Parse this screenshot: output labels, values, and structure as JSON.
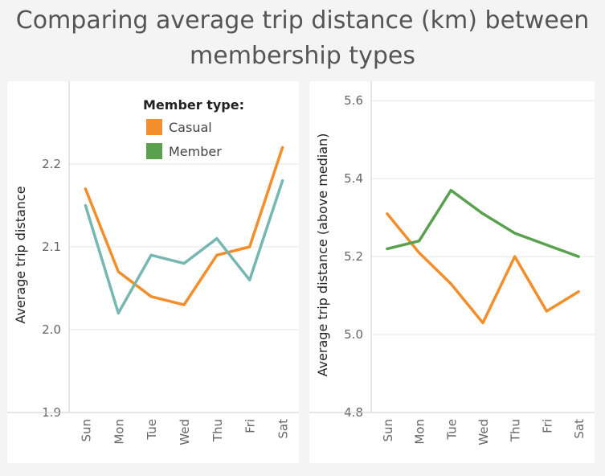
{
  "title": "Comparing average trip distance (km) between membership types",
  "colors": {
    "casual": "#f28e2b",
    "member": "#59a14f",
    "member_left_line": "#76b7b2",
    "grid": "#e6e6e6",
    "axis": "#cccccc"
  },
  "legend": {
    "title": "Member type:",
    "items": [
      {
        "label": "Casual",
        "color": "#f28e2b"
      },
      {
        "label": "Member",
        "color": "#59a14f"
      }
    ]
  },
  "chart_data": [
    {
      "type": "line",
      "categories": [
        "Sun",
        "Mon",
        "Tue",
        "Wed",
        "Thu",
        "Fri",
        "Sat"
      ],
      "ylabel": "Average trip distance",
      "ylim": [
        1.9,
        2.3
      ],
      "yticks": [
        "1.9",
        "2.0",
        "2.1",
        "2.2"
      ],
      "series": [
        {
          "key": "casual",
          "values": [
            2.17,
            2.07,
            2.04,
            2.03,
            2.09,
            2.1,
            2.22
          ]
        },
        {
          "key": "member",
          "values": [
            2.15,
            2.02,
            2.09,
            2.08,
            2.11,
            2.06,
            2.18
          ]
        }
      ]
    },
    {
      "type": "line",
      "categories": [
        "Sun",
        "Mon",
        "Tue",
        "Wed",
        "Thu",
        "Fri",
        "Sat"
      ],
      "ylabel": "Average trip distance (above median)",
      "ylim": [
        4.8,
        5.6
      ],
      "yticks": [
        "4.8",
        "5.0",
        "5.2",
        "5.4",
        "5.6"
      ],
      "series": [
        {
          "key": "casual",
          "values": [
            5.31,
            5.21,
            5.13,
            5.03,
            5.2,
            5.06,
            5.11
          ]
        },
        {
          "key": "member",
          "values": [
            5.22,
            5.24,
            5.37,
            5.31,
            5.26,
            5.23,
            5.2
          ]
        }
      ]
    }
  ]
}
